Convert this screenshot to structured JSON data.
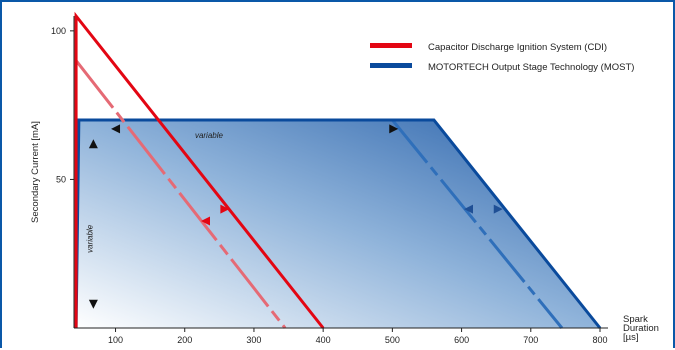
{
  "chart_data": {
    "type": "line",
    "xlabel": "Spark Duration [µs]",
    "xlabel_lines": [
      "Spark",
      "Duration",
      "[µs]"
    ],
    "ylabel": "Secondary Current [mA]",
    "xlim": [
      40,
      800
    ],
    "ylim": [
      0,
      105
    ],
    "x_ticks": [
      100,
      200,
      300,
      400,
      500,
      600,
      700,
      800
    ],
    "y_ticks": [
      50,
      100
    ],
    "series": [
      {
        "name": "Capacitor Discharge Ignition System (CDI)",
        "color": "#e30613",
        "points": [
          [
            43,
            0
          ],
          [
            43,
            105
          ],
          [
            400,
            0
          ]
        ],
        "dashed_variant": [
          [
            43,
            90
          ],
          [
            345,
            0
          ]
        ]
      },
      {
        "name": "MOTORTECH Output Stage Technology (MOST)",
        "color": "#0a4a9c",
        "points": [
          [
            43,
            0
          ],
          [
            47,
            70
          ],
          [
            560,
            70
          ],
          [
            800,
            0
          ]
        ],
        "dashed_variant": [
          [
            500,
            70
          ],
          [
            745,
            0
          ]
        ]
      }
    ],
    "annotations": [
      {
        "text": "variable",
        "x": 235,
        "y": 64
      },
      {
        "text": "variable",
        "x": 67,
        "y": 30,
        "rotated": true
      }
    ],
    "legend_position": "top-right",
    "grid": false
  }
}
